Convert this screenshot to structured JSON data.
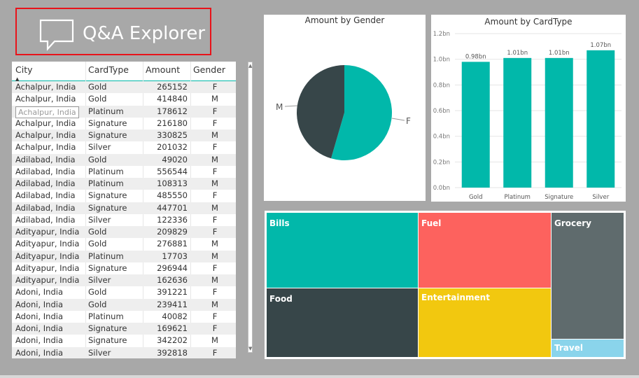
{
  "qa_button": {
    "label": "Q&A Explorer",
    "border_color": "#e8131a"
  },
  "table": {
    "headers": {
      "city": "City",
      "cardtype": "CardType",
      "amount": "Amount",
      "gender": "Gender"
    },
    "rows": [
      {
        "city": "Achalpur, India",
        "cardtype": "Gold",
        "amount": "265152",
        "gender": "F"
      },
      {
        "city": "Achalpur, India",
        "cardtype": "Gold",
        "amount": "414840",
        "gender": "M"
      },
      {
        "city": "Achalpur, India",
        "cardtype": "Platinum",
        "amount": "178612",
        "gender": "F"
      },
      {
        "city": "Achalpur, India",
        "cardtype": "Signature",
        "amount": "216180",
        "gender": "F"
      },
      {
        "city": "Achalpur, India",
        "cardtype": "Signature",
        "amount": "330825",
        "gender": "M"
      },
      {
        "city": "Achalpur, India",
        "cardtype": "Silver",
        "amount": "201032",
        "gender": "F"
      },
      {
        "city": "Adilabad, India",
        "cardtype": "Gold",
        "amount": "49020",
        "gender": "M"
      },
      {
        "city": "Adilabad, India",
        "cardtype": "Platinum",
        "amount": "556544",
        "gender": "F"
      },
      {
        "city": "Adilabad, India",
        "cardtype": "Platinum",
        "amount": "108313",
        "gender": "M"
      },
      {
        "city": "Adilabad, India",
        "cardtype": "Signature",
        "amount": "485550",
        "gender": "F"
      },
      {
        "city": "Adilabad, India",
        "cardtype": "Signature",
        "amount": "447701",
        "gender": "M"
      },
      {
        "city": "Adilabad, India",
        "cardtype": "Silver",
        "amount": "122336",
        "gender": "F"
      },
      {
        "city": "Adityapur, India",
        "cardtype": "Gold",
        "amount": "209829",
        "gender": "F"
      },
      {
        "city": "Adityapur, India",
        "cardtype": "Gold",
        "amount": "276881",
        "gender": "M"
      },
      {
        "city": "Adityapur, India",
        "cardtype": "Platinum",
        "amount": "17703",
        "gender": "M"
      },
      {
        "city": "Adityapur, India",
        "cardtype": "Signature",
        "amount": "296944",
        "gender": "F"
      },
      {
        "city": "Adityapur, India",
        "cardtype": "Silver",
        "amount": "162636",
        "gender": "M"
      },
      {
        "city": "Adoni, India",
        "cardtype": "Gold",
        "amount": "391221",
        "gender": "F"
      },
      {
        "city": "Adoni, India",
        "cardtype": "Gold",
        "amount": "239411",
        "gender": "M"
      },
      {
        "city": "Adoni, India",
        "cardtype": "Platinum",
        "amount": "40082",
        "gender": "F"
      },
      {
        "city": "Adoni, India",
        "cardtype": "Signature",
        "amount": "169621",
        "gender": "F"
      },
      {
        "city": "Adoni, India",
        "cardtype": "Signature",
        "amount": "342202",
        "gender": "M"
      },
      {
        "city": "Adoni, India",
        "cardtype": "Silver",
        "amount": "392818",
        "gender": "F"
      }
    ],
    "tooltip": "Achalpur, India",
    "accent_color": "#01b8aa"
  },
  "pie_chart": {
    "title": "Amount by Gender",
    "labels": [
      "M",
      "F"
    ],
    "colors": [
      "#374649",
      "#01b8aa"
    ]
  },
  "bar_chart": {
    "title": "Amount by CardType",
    "data_labels": [
      "0.98bn",
      "1.01bn",
      "1.01bn",
      "1.07bn"
    ],
    "y_ticks": [
      "1.2bn",
      "1.0bn",
      "0.8bn",
      "0.6bn",
      "0.4bn",
      "0.2bn",
      "0.0bn"
    ],
    "bar_color": "#01b8aa"
  },
  "treemap": {
    "tiles": [
      {
        "label": "Bills",
        "color": "#01b8aa"
      },
      {
        "label": "Fuel",
        "color": "#fd625e"
      },
      {
        "label": "Grocery",
        "color": "#5f6b6d"
      },
      {
        "label": "Food",
        "color": "#374649"
      },
      {
        "label": "Entertainment",
        "color": "#f2c80f"
      },
      {
        "label": "Travel",
        "color": "#8ad4eb"
      }
    ]
  },
  "chart_data": [
    {
      "type": "pie",
      "title": "Amount by Gender",
      "categories": [
        "F",
        "M"
      ],
      "values": [
        54.5,
        45.5
      ]
    },
    {
      "type": "bar",
      "title": "Amount by CardType",
      "categories": [
        "Gold",
        "Platinum",
        "Signature",
        "Silver"
      ],
      "values": [
        0.98,
        1.01,
        1.01,
        1.07
      ],
      "data_labels": [
        "0.98bn",
        "1.01bn",
        "1.01bn",
        "1.07bn"
      ],
      "ylim": [
        0,
        1.2
      ],
      "y_ticks": [
        1.2,
        1.0,
        0.8,
        0.6,
        0.4,
        0.2,
        0.0
      ],
      "y_tick_labels": [
        "1.2bn",
        "1.0bn",
        "0.8bn",
        "0.6bn",
        "0.4bn",
        "0.2bn",
        "0.0bn"
      ],
      "grid": true
    }
  ]
}
